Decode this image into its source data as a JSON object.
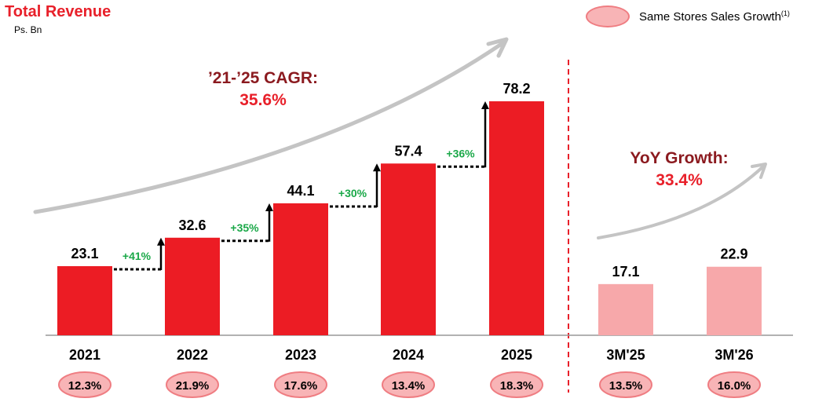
{
  "header": {
    "title": "Total Revenue",
    "subtitle": "Ps. Bn",
    "legend_label": "Same Stores Sales Growth",
    "legend_sup": "(1)"
  },
  "annotations": {
    "cagr_label": "’21-’25 CAGR:",
    "cagr_value": "35.6%",
    "yoy_label": "YoY Growth:",
    "yoy_value": "33.4%"
  },
  "colors": {
    "annual_bar": "#ec1c24",
    "quarter_bar": "#f7a8aa",
    "growth_text": "#1aa848",
    "cagr_label": "#8b1a1f",
    "highlight": "#e8202a",
    "sssg_fill": "#f8b4b6",
    "sssg_border": "#ef7d82",
    "divider": "#e8202a"
  },
  "chart_data": {
    "type": "bar",
    "unit": "Ps. Bn",
    "categories": [
      "2021",
      "2022",
      "2023",
      "2024",
      "2025",
      "3M'25",
      "3M'26"
    ],
    "values": [
      23.1,
      32.6,
      44.1,
      57.4,
      78.2,
      17.1,
      22.9
    ],
    "value_labels": [
      "23.1",
      "32.6",
      "44.1",
      "57.4",
      "78.2",
      "17.1",
      "22.9"
    ],
    "period_type": [
      "annual",
      "annual",
      "annual",
      "annual",
      "annual",
      "quarter",
      "quarter"
    ],
    "yoy_steps": [
      {
        "from": "2021",
        "to": "2022",
        "label": "+41%"
      },
      {
        "from": "2022",
        "to": "2023",
        "label": "+35%"
      },
      {
        "from": "2023",
        "to": "2024",
        "label": "+30%"
      },
      {
        "from": "2024",
        "to": "2025",
        "label": "+36%"
      }
    ],
    "same_store_sales_growth": [
      "12.3%",
      "21.9%",
      "17.6%",
      "13.4%",
      "18.3%",
      "13.5%",
      "16.0%"
    ],
    "ylim": [
      0,
      80
    ],
    "grid": false,
    "legend_position": "top-right"
  }
}
